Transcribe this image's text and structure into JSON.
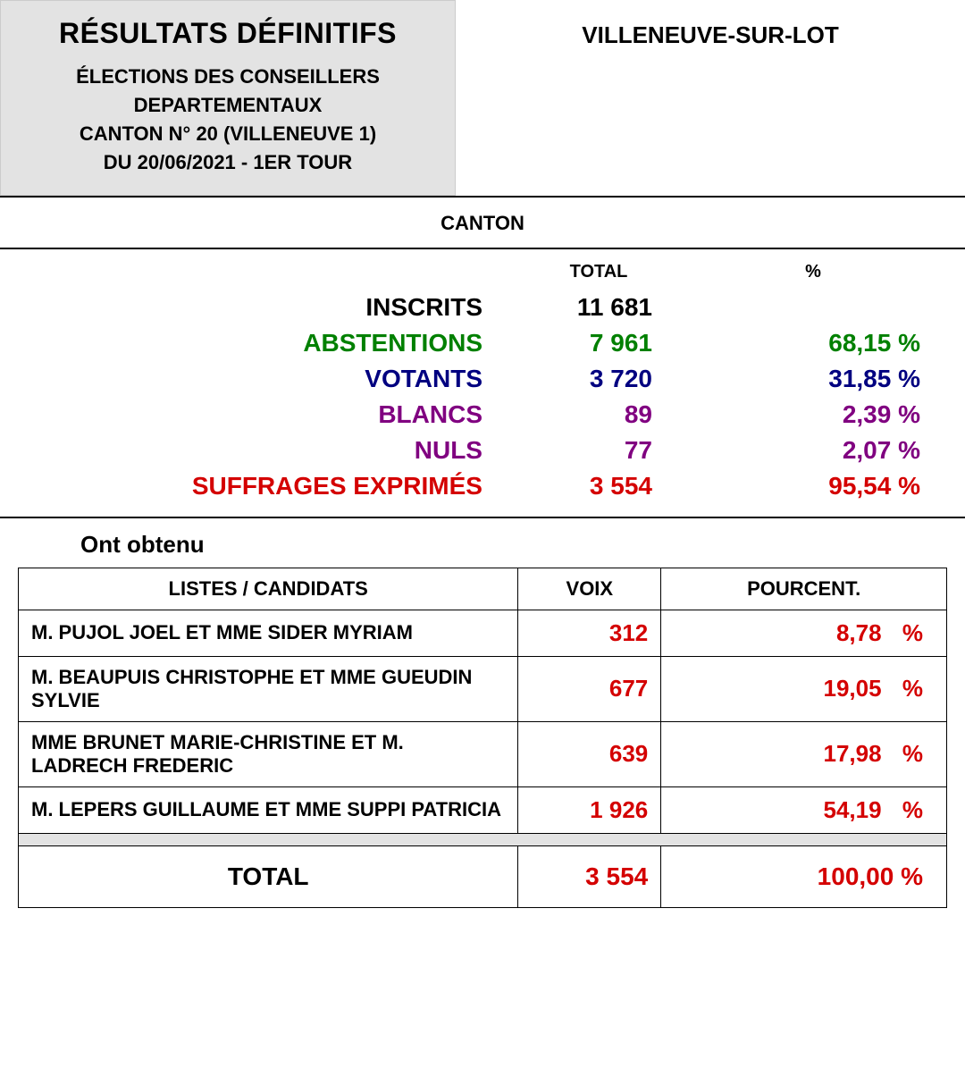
{
  "colors": {
    "black": "#000000",
    "green": "#008000",
    "navy": "#000080",
    "purple": "#800080",
    "red": "#d40000",
    "headerBg": "#e3e3e3"
  },
  "header": {
    "title": "RÉSULTATS DÉFINITIFS",
    "line1": "ÉLECTIONS DES CONSEILLERS DEPARTEMENTAUX",
    "line2": "CANTON N° 20 (VILLENEUVE 1)",
    "line3": "DU 20/06/2021  -  1ER TOUR",
    "location": "VILLENEUVE-SUR-LOT"
  },
  "cantonLabel": "CANTON",
  "statsHeaders": {
    "total": "TOTAL",
    "pct": "%"
  },
  "stats": [
    {
      "label": "INSCRITS",
      "total": "11 681",
      "pct": "",
      "color": "#000000"
    },
    {
      "label": "ABSTENTIONS",
      "total": "7 961",
      "pct": "68,15 %",
      "color": "#008000"
    },
    {
      "label": "VOTANTS",
      "total": "3 720",
      "pct": "31,85 %",
      "color": "#000080"
    },
    {
      "label": "BLANCS",
      "total": "89",
      "pct": "2,39 %",
      "color": "#800080"
    },
    {
      "label": "NULS",
      "total": "77",
      "pct": "2,07 %",
      "color": "#800080"
    },
    {
      "label": "SUFFRAGES EXPRIMÉS",
      "total": "3 554",
      "pct": "95,54 %",
      "color": "#d40000"
    }
  ],
  "obtenuLabel": "Ont obtenu",
  "candHeaders": {
    "name": "LISTES / CANDIDATS",
    "voix": "VOIX",
    "pct": "POURCENT."
  },
  "candidates": [
    {
      "name": "M. PUJOL JOEL ET MME SIDER MYRIAM",
      "voix": "312",
      "pct": "8,78",
      "unit": "%"
    },
    {
      "name": "M. BEAUPUIS CHRISTOPHE ET MME GUEUDIN SYLVIE",
      "voix": "677",
      "pct": "19,05",
      "unit": "%"
    },
    {
      "name": "MME BRUNET MARIE-CHRISTINE ET M. LADRECH FREDERIC",
      "voix": "639",
      "pct": "17,98",
      "unit": "%"
    },
    {
      "name": "M. LEPERS GUILLAUME ET MME SUPPI PATRICIA",
      "voix": "1 926",
      "pct": "54,19",
      "unit": "%"
    }
  ],
  "total": {
    "label": "TOTAL",
    "voix": "3 554",
    "pct": "100,00 %"
  },
  "candValueColor": "#d40000"
}
